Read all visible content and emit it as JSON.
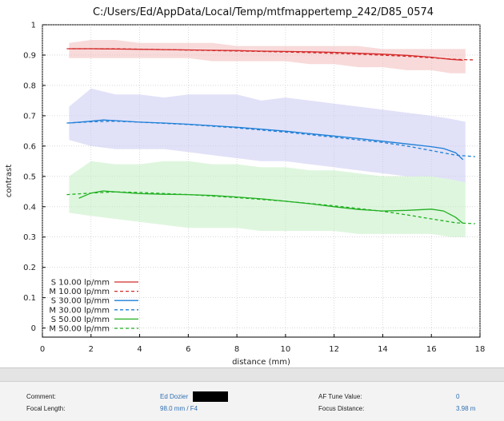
{
  "chart_data": {
    "type": "line",
    "title": "C:/Users/Ed/AppData/Local/Temp/mtfmappertemp_242/D85_0574",
    "xlabel": "distance (mm)",
    "ylabel": "contrast",
    "xlim": [
      0,
      18
    ],
    "ylim": [
      -0.03,
      1.0
    ],
    "xticks": [
      "0",
      "2",
      "4",
      "6",
      "8",
      "10",
      "12",
      "14",
      "16",
      "18"
    ],
    "yticks": [
      "0",
      "0.1",
      "0.2",
      "0.3",
      "0.4",
      "0.5",
      "0.6",
      "0.7",
      "0.8",
      "0.9",
      "1"
    ],
    "grid": true,
    "legend_position": "bottom-left",
    "colors": {
      "red": "#d42a2a",
      "blue": "#1d7fd6",
      "green": "#22b022"
    },
    "bands": [
      {
        "color": "red",
        "x": [
          1.1,
          2,
          3,
          4,
          5,
          6,
          7,
          8,
          9,
          10,
          11,
          12,
          13,
          14,
          15,
          16,
          16.8,
          17.4
        ],
        "upper": [
          0.94,
          0.95,
          0.95,
          0.94,
          0.94,
          0.94,
          0.94,
          0.93,
          0.93,
          0.93,
          0.93,
          0.93,
          0.93,
          0.92,
          0.92,
          0.92,
          0.92,
          0.92
        ],
        "lower": [
          0.89,
          0.89,
          0.89,
          0.89,
          0.89,
          0.89,
          0.88,
          0.88,
          0.88,
          0.88,
          0.87,
          0.87,
          0.86,
          0.86,
          0.85,
          0.85,
          0.84,
          0.84
        ]
      },
      {
        "color": "blue",
        "x": [
          1.1,
          2,
          3,
          4,
          5,
          6,
          7,
          8,
          9,
          10,
          11,
          12,
          13,
          14,
          15,
          16,
          16.8,
          17.4
        ],
        "upper": [
          0.73,
          0.79,
          0.77,
          0.77,
          0.76,
          0.77,
          0.77,
          0.77,
          0.75,
          0.76,
          0.75,
          0.74,
          0.73,
          0.72,
          0.71,
          0.7,
          0.69,
          0.68
        ],
        "lower": [
          0.62,
          0.6,
          0.59,
          0.59,
          0.59,
          0.58,
          0.57,
          0.56,
          0.55,
          0.55,
          0.54,
          0.53,
          0.52,
          0.51,
          0.5,
          0.5,
          0.49,
          0.48
        ]
      },
      {
        "color": "green",
        "x": [
          1.1,
          2,
          3,
          4,
          5,
          6,
          7,
          8,
          9,
          10,
          11,
          12,
          13,
          14,
          15,
          16,
          16.8,
          17.4
        ],
        "upper": [
          0.5,
          0.55,
          0.54,
          0.54,
          0.55,
          0.55,
          0.54,
          0.54,
          0.53,
          0.53,
          0.52,
          0.52,
          0.51,
          0.5,
          0.5,
          0.5,
          0.49,
          0.48
        ],
        "lower": [
          0.38,
          0.37,
          0.36,
          0.35,
          0.34,
          0.33,
          0.33,
          0.33,
          0.32,
          0.32,
          0.32,
          0.32,
          0.31,
          0.31,
          0.31,
          0.31,
          0.3,
          0.3
        ]
      }
    ],
    "series": [
      {
        "name": "S 10.00 lp/mm",
        "color": "red",
        "style": "solid",
        "x": [
          1.1,
          2,
          3,
          4,
          5,
          6,
          7,
          8,
          9,
          10,
          11,
          12,
          13,
          14,
          15,
          16,
          16.8,
          17.3
        ],
        "y": [
          0.921,
          0.921,
          0.92,
          0.919,
          0.918,
          0.917,
          0.916,
          0.915,
          0.913,
          0.912,
          0.911,
          0.909,
          0.906,
          0.903,
          0.899,
          0.893,
          0.886,
          0.883
        ]
      },
      {
        "name": "M 10.00 lp/mm",
        "color": "red",
        "style": "dashed",
        "x": [
          1.0,
          3,
          5,
          7,
          9,
          11,
          13,
          15,
          16,
          17,
          17.8
        ],
        "y": [
          0.921,
          0.921,
          0.918,
          0.915,
          0.912,
          0.908,
          0.903,
          0.896,
          0.891,
          0.886,
          0.884
        ]
      },
      {
        "name": "S 30.00 lp/mm",
        "color": "blue",
        "style": "solid",
        "x": [
          1.1,
          2,
          2.5,
          3,
          4,
          5,
          6,
          7,
          8,
          9,
          10,
          11,
          12,
          13,
          14,
          15,
          16,
          16.5,
          17.0,
          17.3
        ],
        "y": [
          0.676,
          0.682,
          0.686,
          0.684,
          0.679,
          0.676,
          0.672,
          0.667,
          0.662,
          0.656,
          0.649,
          0.641,
          0.633,
          0.625,
          0.616,
          0.607,
          0.598,
          0.592,
          0.578,
          0.555
        ]
      },
      {
        "name": "M 30.00 lp/mm",
        "color": "blue",
        "style": "dashed",
        "x": [
          1.0,
          2,
          3,
          4,
          6,
          8,
          10,
          12,
          14,
          15,
          16,
          17,
          17.8
        ],
        "y": [
          0.676,
          0.68,
          0.682,
          0.679,
          0.671,
          0.66,
          0.646,
          0.629,
          0.612,
          0.6,
          0.585,
          0.57,
          0.565
        ]
      },
      {
        "name": "S 50.00 lp/mm",
        "color": "green",
        "style": "solid",
        "x": [
          1.5,
          2,
          2.5,
          3,
          4,
          5,
          6,
          7,
          8,
          9,
          10,
          11,
          12,
          13,
          14,
          15,
          16,
          16.5,
          17.0,
          17.3
        ],
        "y": [
          0.428,
          0.445,
          0.452,
          0.449,
          0.443,
          0.441,
          0.44,
          0.437,
          0.432,
          0.426,
          0.418,
          0.41,
          0.4,
          0.391,
          0.386,
          0.388,
          0.392,
          0.386,
          0.365,
          0.345
        ]
      },
      {
        "name": "M 50.00 lp/mm",
        "color": "green",
        "style": "dashed",
        "x": [
          1.0,
          2,
          3,
          4,
          6,
          8,
          10,
          12,
          14,
          15,
          16,
          17,
          17.8
        ],
        "y": [
          0.44,
          0.445,
          0.449,
          0.447,
          0.44,
          0.43,
          0.418,
          0.403,
          0.385,
          0.373,
          0.36,
          0.347,
          0.344
        ]
      }
    ]
  },
  "info": {
    "comment_label": "Comment:",
    "comment_value": "Ed Dozier",
    "focal_length_label": "Focal Length:",
    "focal_length_value": "98.0 mm / F4",
    "af_tune_label": "AF Tune Value:",
    "af_tune_value": "0",
    "focus_distance_label": "Focus Distance:",
    "focus_distance_value": "3.98 m"
  }
}
